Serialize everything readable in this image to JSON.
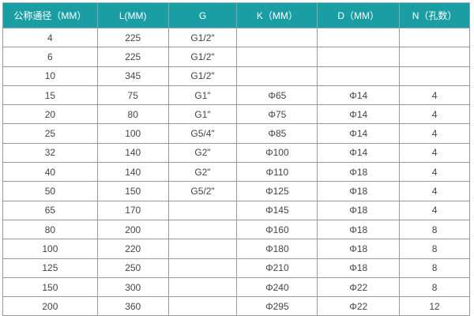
{
  "header_color": "#1b9ea3",
  "columns": [
    "公称通径（MM）",
    "L(MM)",
    "G",
    "K（MM）",
    "D（MM）",
    "N（孔数）"
  ],
  "rows": [
    [
      "4",
      "225",
      "G1/2\"",
      "",
      "",
      ""
    ],
    [
      "6",
      "225",
      "G1/2\"",
      "",
      "",
      ""
    ],
    [
      "10",
      "345",
      "G1/2\"",
      "",
      "",
      ""
    ],
    [
      "15",
      "75",
      "G1\"",
      "Φ65",
      "Φ14",
      "4"
    ],
    [
      "20",
      "80",
      "G1\"",
      "Φ75",
      "Φ14",
      "4"
    ],
    [
      "25",
      "100",
      "G5/4\"",
      "Φ85",
      "Φ14",
      "4"
    ],
    [
      "32",
      "140",
      "G2\"",
      "Φ100",
      "Φ14",
      "4"
    ],
    [
      "40",
      "140",
      "G2\"",
      "Φ110",
      "Φ18",
      "4"
    ],
    [
      "50",
      "150",
      "G5/2\"",
      "Φ125",
      "Φ18",
      "4"
    ],
    [
      "65",
      "170",
      "",
      "Φ145",
      "Φ18",
      "4"
    ],
    [
      "80",
      "200",
      "",
      "Φ160",
      "Φ18",
      "8"
    ],
    [
      "100",
      "220",
      "",
      "Φ180",
      "Φ18",
      "8"
    ],
    [
      "125",
      "250",
      "",
      "Φ210",
      "Φ18",
      "8"
    ],
    [
      "150",
      "300",
      "",
      "Φ240",
      "Φ22",
      "8"
    ],
    [
      "200",
      "360",
      "",
      "Φ295",
      "Φ22",
      "12"
    ]
  ]
}
